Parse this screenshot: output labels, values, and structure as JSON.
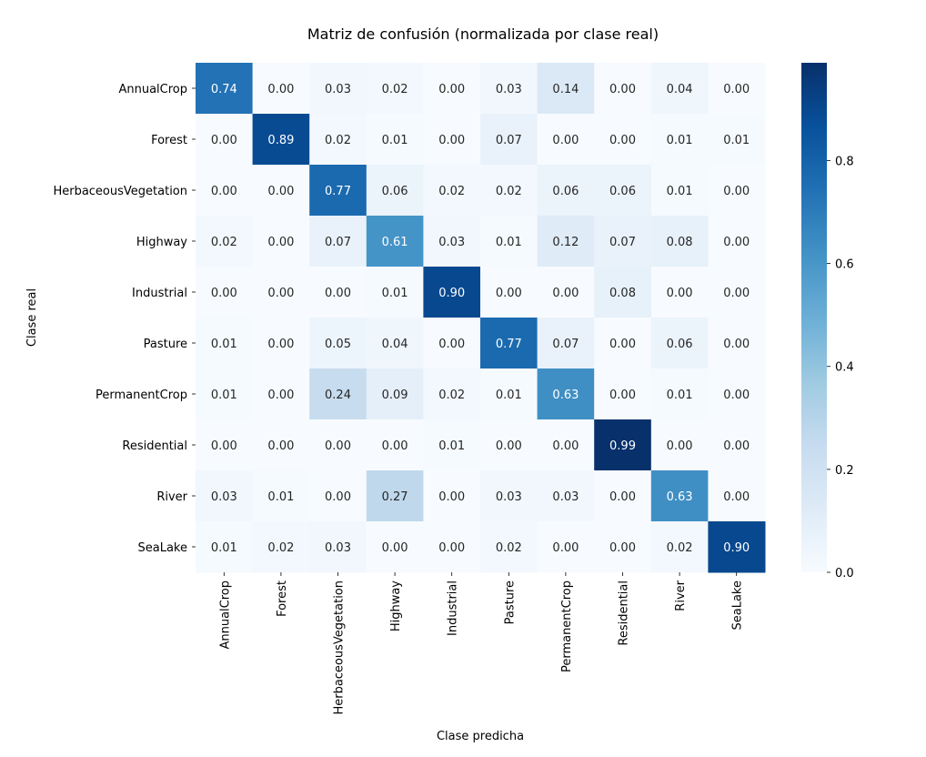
{
  "chart_data": {
    "type": "heatmap",
    "title": "Matriz de confusión (normalizada por clase real)",
    "xlabel": "Clase predicha",
    "ylabel": "Clase real",
    "row_labels": [
      "AnnualCrop",
      "Forest",
      "HerbaceousVegetation",
      "Highway",
      "Industrial",
      "Pasture",
      "PermanentCrop",
      "Residential",
      "River",
      "SeaLake"
    ],
    "col_labels": [
      "AnnualCrop",
      "Forest",
      "HerbaceousVegetation",
      "Highway",
      "Industrial",
      "Pasture",
      "PermanentCrop",
      "Residential",
      "River",
      "SeaLake"
    ],
    "values": [
      [
        0.74,
        0.0,
        0.03,
        0.02,
        0.0,
        0.03,
        0.14,
        0.0,
        0.04,
        0.0
      ],
      [
        0.0,
        0.89,
        0.02,
        0.01,
        0.0,
        0.07,
        0.0,
        0.0,
        0.01,
        0.01
      ],
      [
        0.0,
        0.0,
        0.77,
        0.06,
        0.02,
        0.02,
        0.06,
        0.06,
        0.01,
        0.0
      ],
      [
        0.02,
        0.0,
        0.07,
        0.61,
        0.03,
        0.01,
        0.12,
        0.07,
        0.08,
        0.0
      ],
      [
        0.0,
        0.0,
        0.0,
        0.01,
        0.9,
        0.0,
        0.0,
        0.08,
        0.0,
        0.0
      ],
      [
        0.01,
        0.0,
        0.05,
        0.04,
        0.0,
        0.77,
        0.07,
        0.0,
        0.06,
        0.0
      ],
      [
        0.01,
        0.0,
        0.24,
        0.09,
        0.02,
        0.01,
        0.63,
        0.0,
        0.01,
        0.0
      ],
      [
        0.0,
        0.0,
        0.0,
        0.0,
        0.01,
        0.0,
        0.0,
        0.99,
        0.0,
        0.0
      ],
      [
        0.03,
        0.01,
        0.0,
        0.27,
        0.0,
        0.03,
        0.03,
        0.0,
        0.63,
        0.0
      ],
      [
        0.01,
        0.02,
        0.03,
        0.0,
        0.0,
        0.02,
        0.0,
        0.0,
        0.02,
        0.9
      ]
    ],
    "colormap": "Blues",
    "value_range": [
      0,
      0.99
    ],
    "colorbar_ticks": [
      "0.0",
      "0.2",
      "0.4",
      "0.6",
      "0.8"
    ],
    "colorbar_tick_values": [
      0,
      0.2,
      0.4,
      0.6,
      0.8
    ],
    "annotation_format": "0.00",
    "colorbar_placement": "right"
  }
}
